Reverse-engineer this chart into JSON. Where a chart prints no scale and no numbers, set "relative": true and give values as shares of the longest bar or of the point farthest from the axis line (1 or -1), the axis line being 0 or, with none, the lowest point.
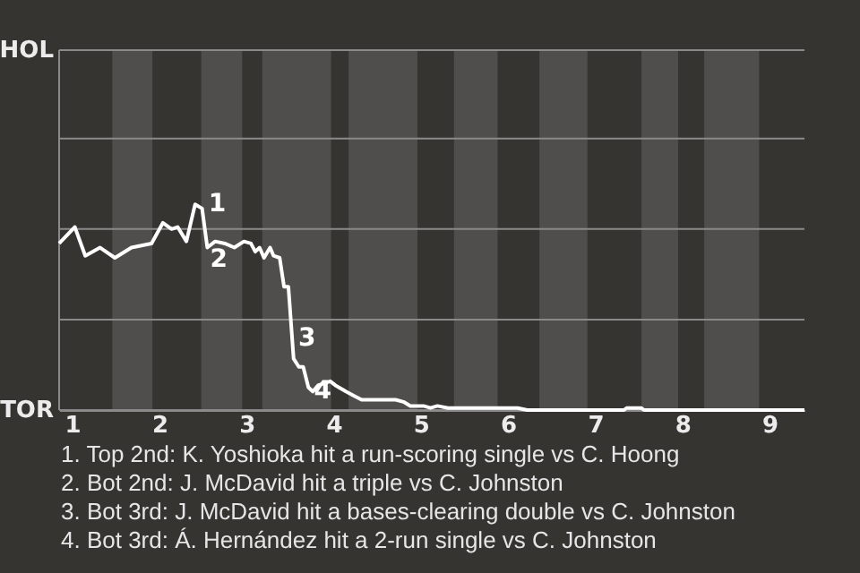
{
  "chart_data": {
    "type": "line",
    "x": [
      0.85,
      1.03,
      1.15,
      1.32,
      1.49,
      1.68,
      1.91,
      2.04,
      2.14,
      2.21,
      2.31,
      2.41,
      2.49,
      2.55,
      2.64,
      2.75,
      2.86,
      2.97,
      3.05,
      3.1,
      3.15,
      3.2,
      3.27,
      3.31,
      3.38,
      3.43,
      3.48,
      3.54,
      3.6,
      3.65,
      3.71,
      3.76,
      3.82,
      3.96,
      4.02,
      4.14,
      4.23,
      4.32,
      4.46,
      4.6,
      4.71,
      4.8,
      4.88,
      5.03,
      5.11,
      5.19,
      5.31,
      6.11,
      6.22,
      7.33,
      7.36,
      7.53,
      7.56,
      9.4
    ],
    "series": [
      {
        "color": "#ffffff",
        "values": [
          0.81,
          0.89,
          0.75,
          0.79,
          0.74,
          0.79,
          0.81,
          0.91,
          0.88,
          0.89,
          0.82,
          1,
          0.98,
          0.79,
          0.82,
          0.81,
          0.79,
          0.82,
          0.81,
          0.77,
          0.79,
          0.74,
          0.79,
          0.75,
          0.74,
          0.6,
          0.6,
          0.25,
          0.21,
          0.21,
          0.11,
          0.09,
          0.12,
          0.14,
          0.12,
          0.09,
          0.07,
          0.05,
          0.05,
          0.05,
          0.05,
          0.04,
          0.02,
          0.02,
          0.01,
          0.02,
          0.01,
          0.01,
          0,
          0,
          0.01,
          0.01,
          0,
          0
        ]
      }
    ],
    "relative": true,
    "xlim": [
      0.85,
      9.4
    ],
    "xticks": [
      1,
      2,
      3,
      4,
      5,
      6,
      7,
      8,
      9
    ],
    "ref_lines": [
      {
        "axis": "y",
        "value": 0,
        "label": "TOR"
      },
      {
        "axis": "y",
        "value": 0.44,
        "label": null
      },
      {
        "axis": "y",
        "value": 0.88,
        "label": null
      },
      {
        "axis": "y",
        "value": 1.32,
        "label": null
      },
      {
        "axis": "y",
        "value": 1.75,
        "label": "HOL"
      }
    ],
    "bands": [
      {
        "axis": "x",
        "from": 1.46,
        "to": 1.92,
        "color": "#4f4e4c"
      },
      {
        "axis": "x",
        "from": 2.48,
        "to": 2.95,
        "color": "#4f4e4c"
      },
      {
        "axis": "x",
        "from": 3.18,
        "to": 3.97,
        "color": "#4f4e4c"
      },
      {
        "axis": "x",
        "from": 4.17,
        "to": 4.96,
        "color": "#4f4e4c"
      },
      {
        "axis": "x",
        "from": 5.38,
        "to": 5.88,
        "color": "#4f4e4c"
      },
      {
        "axis": "x",
        "from": 6.36,
        "to": 6.91,
        "color": "#4f4e4c"
      },
      {
        "axis": "x",
        "from": 7.53,
        "to": 7.95,
        "color": "#4f4e4c"
      },
      {
        "axis": "x",
        "from": 8.25,
        "to": 8.88,
        "color": "#4f4e4c"
      }
    ],
    "annotations": [
      {
        "text": "1",
        "x": 2.56,
        "y": 1.0
      },
      {
        "text": "2",
        "x": 2.58,
        "y": 0.73
      },
      {
        "text": "3",
        "x": 3.59,
        "y": 0.35
      },
      {
        "text": "4",
        "x": 3.77,
        "y": 0.09
      },
      "1. Top 2nd: K. Yoshioka hit a run-scoring single vs C. Hoong",
      "2. Bot 2nd: J. McDavid hit a triple vs C. Johnston",
      "3. Bot 3rd: J. McDavid hit a bases-clearing double vs C. Johnston",
      "4. Bot 3rd: Á. Hernández hit a 2-run single vs C. Johnston"
    ]
  }
}
